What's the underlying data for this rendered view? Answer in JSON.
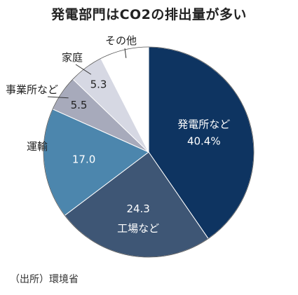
{
  "chart_data": {
    "type": "pie",
    "title": "発電部門はCO2の排出量が多い",
    "source": "（出所）環境省",
    "start_angle_deg": 0,
    "direction": "clockwise",
    "slices": [
      {
        "name": "発電所など",
        "value": 40.4,
        "value_label": "40.4%",
        "color": "#0e3461",
        "label_color": "#ffffff"
      },
      {
        "name": "工場など",
        "value": 24.3,
        "value_label": "24.3",
        "color": "#3e5675",
        "label_color": "#ffffff"
      },
      {
        "name": "運輸",
        "value": 17.0,
        "value_label": "17.0",
        "color": "#4c86ad",
        "label_color": "#ffffff"
      },
      {
        "name": "事業所など",
        "value": 5.5,
        "value_label": "5.5",
        "color": "#a7aabb",
        "label_color": "#222222"
      },
      {
        "name": "家庭",
        "value": 5.3,
        "value_label": "5.3",
        "color": "#d6d8e3",
        "label_color": "#222222"
      },
      {
        "name": "その他",
        "value": 7.5,
        "value_label": "",
        "color": "#ffffff",
        "label_color": "#222222"
      }
    ]
  }
}
